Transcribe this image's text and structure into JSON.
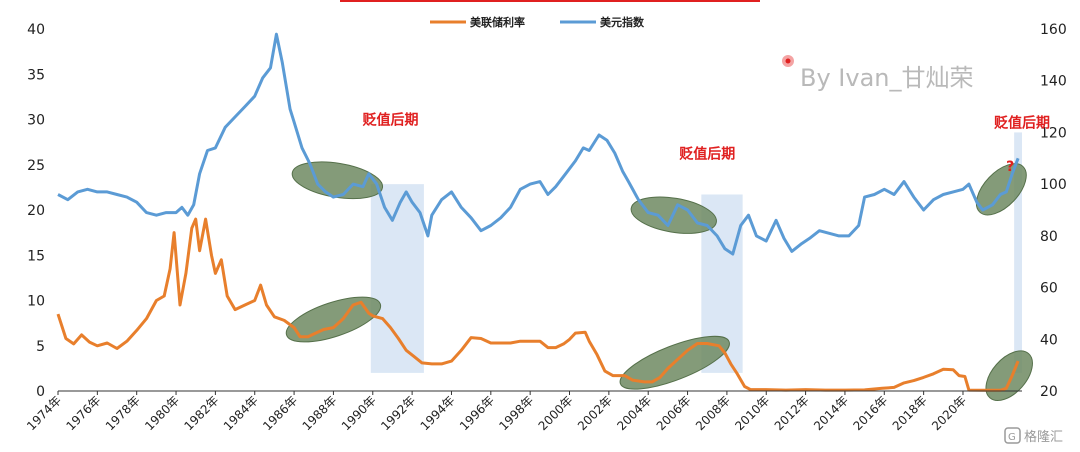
{
  "chart_data": {
    "type": "line",
    "title": "",
    "legend_position": "top",
    "grid": false,
    "x_ticks": [
      "1974年",
      "1976年",
      "1978年",
      "1980年",
      "1982年",
      "1984年",
      "1986年",
      "1988年",
      "1990年",
      "1992年",
      "1994年",
      "1996年",
      "1998年",
      "2000年",
      "2002年",
      "2004年",
      "2006年",
      "2008年",
      "2010年",
      "2012年",
      "2014年",
      "2016年",
      "2018年",
      "2020年"
    ],
    "x_range": [
      1974,
      2023
    ],
    "y_left": {
      "ticks": [
        0,
        5,
        10,
        15,
        20,
        25,
        30,
        35,
        40
      ],
      "ylim": [
        0,
        40
      ]
    },
    "y_right": {
      "ticks": [
        20,
        40,
        60,
        80,
        100,
        120,
        140,
        160
      ],
      "ylim": [
        20,
        160
      ]
    },
    "series": [
      {
        "name": "美联储利率",
        "axis": "left",
        "color": "#e87f2c",
        "points": [
          [
            1974.0,
            8.5
          ],
          [
            1974.4,
            5.8
          ],
          [
            1974.8,
            5.2
          ],
          [
            1975.2,
            6.2
          ],
          [
            1975.6,
            5.4
          ],
          [
            1976.0,
            5.0
          ],
          [
            1976.5,
            5.3
          ],
          [
            1977.0,
            4.7
          ],
          [
            1977.5,
            5.5
          ],
          [
            1978.0,
            6.7
          ],
          [
            1978.5,
            8.0
          ],
          [
            1979.0,
            10.0
          ],
          [
            1979.4,
            10.5
          ],
          [
            1979.7,
            13.5
          ],
          [
            1979.9,
            17.5
          ],
          [
            1980.2,
            9.5
          ],
          [
            1980.5,
            13.0
          ],
          [
            1980.8,
            18.0
          ],
          [
            1981.0,
            19.0
          ],
          [
            1981.2,
            15.5
          ],
          [
            1981.5,
            19.0
          ],
          [
            1981.8,
            15.0
          ],
          [
            1982.0,
            13.0
          ],
          [
            1982.3,
            14.5
          ],
          [
            1982.6,
            10.5
          ],
          [
            1983.0,
            9.0
          ],
          [
            1983.5,
            9.5
          ],
          [
            1984.0,
            10.0
          ],
          [
            1984.3,
            11.7
          ],
          [
            1984.6,
            9.5
          ],
          [
            1985.0,
            8.2
          ],
          [
            1985.5,
            7.8
          ],
          [
            1986.0,
            7.0
          ],
          [
            1986.3,
            6.0
          ],
          [
            1986.7,
            6.0
          ],
          [
            1987.0,
            6.3
          ],
          [
            1987.5,
            6.8
          ],
          [
            1988.0,
            7.0
          ],
          [
            1988.5,
            8.0
          ],
          [
            1989.0,
            9.5
          ],
          [
            1989.4,
            9.8
          ],
          [
            1989.8,
            8.6
          ],
          [
            1990.0,
            8.3
          ],
          [
            1990.5,
            8.0
          ],
          [
            1990.9,
            7.0
          ],
          [
            1991.3,
            5.8
          ],
          [
            1991.7,
            4.5
          ],
          [
            1992.1,
            3.8
          ],
          [
            1992.5,
            3.1
          ],
          [
            1993.0,
            3.0
          ],
          [
            1993.5,
            3.0
          ],
          [
            1994.0,
            3.3
          ],
          [
            1994.5,
            4.5
          ],
          [
            1995.0,
            5.9
          ],
          [
            1995.5,
            5.8
          ],
          [
            1996.0,
            5.3
          ],
          [
            1996.5,
            5.3
          ],
          [
            1997.0,
            5.3
          ],
          [
            1997.5,
            5.5
          ],
          [
            1998.0,
            5.5
          ],
          [
            1998.5,
            5.5
          ],
          [
            1998.9,
            4.8
          ],
          [
            1999.3,
            4.8
          ],
          [
            1999.7,
            5.2
          ],
          [
            2000.0,
            5.7
          ],
          [
            2000.3,
            6.4
          ],
          [
            2000.8,
            6.5
          ],
          [
            2001.0,
            5.5
          ],
          [
            2001.4,
            4.0
          ],
          [
            2001.8,
            2.2
          ],
          [
            2002.2,
            1.7
          ],
          [
            2002.8,
            1.7
          ],
          [
            2003.2,
            1.2
          ],
          [
            2003.8,
            1.0
          ],
          [
            2004.2,
            1.0
          ],
          [
            2004.6,
            1.5
          ],
          [
            2005.0,
            2.5
          ],
          [
            2005.5,
            3.5
          ],
          [
            2006.0,
            4.5
          ],
          [
            2006.5,
            5.25
          ],
          [
            2007.0,
            5.25
          ],
          [
            2007.6,
            5.0
          ],
          [
            2007.9,
            4.2
          ],
          [
            2008.2,
            3.0
          ],
          [
            2008.5,
            2.0
          ],
          [
            2008.9,
            0.5
          ],
          [
            2009.2,
            0.15
          ],
          [
            2010.0,
            0.15
          ],
          [
            2011.0,
            0.1
          ],
          [
            2012.0,
            0.15
          ],
          [
            2013.0,
            0.1
          ],
          [
            2014.0,
            0.1
          ],
          [
            2015.0,
            0.12
          ],
          [
            2015.9,
            0.3
          ],
          [
            2016.5,
            0.4
          ],
          [
            2017.0,
            0.9
          ],
          [
            2017.5,
            1.15
          ],
          [
            2018.0,
            1.5
          ],
          [
            2018.5,
            1.9
          ],
          [
            2019.0,
            2.4
          ],
          [
            2019.5,
            2.35
          ],
          [
            2019.8,
            1.7
          ],
          [
            2020.1,
            1.6
          ],
          [
            2020.3,
            0.1
          ],
          [
            2021.0,
            0.08
          ],
          [
            2021.9,
            0.08
          ],
          [
            2022.2,
            0.3
          ],
          [
            2022.5,
            1.7
          ],
          [
            2022.8,
            3.3
          ]
        ]
      },
      {
        "name": "美元指数",
        "axis": "right",
        "color": "#5b9bd5",
        "points": [
          [
            1974.0,
            96
          ],
          [
            1974.5,
            94
          ],
          [
            1975.0,
            97
          ],
          [
            1975.5,
            98
          ],
          [
            1976.0,
            97
          ],
          [
            1976.5,
            97
          ],
          [
            1977.0,
            96
          ],
          [
            1977.5,
            95
          ],
          [
            1978.0,
            93
          ],
          [
            1978.5,
            89
          ],
          [
            1979.0,
            88
          ],
          [
            1979.5,
            89
          ],
          [
            1980.0,
            89
          ],
          [
            1980.3,
            91
          ],
          [
            1980.6,
            88
          ],
          [
            1980.9,
            92
          ],
          [
            1981.2,
            104
          ],
          [
            1981.6,
            113
          ],
          [
            1982.0,
            114
          ],
          [
            1982.5,
            122
          ],
          [
            1983.0,
            126
          ],
          [
            1983.5,
            130
          ],
          [
            1984.0,
            134
          ],
          [
            1984.4,
            141
          ],
          [
            1984.8,
            145
          ],
          [
            1985.1,
            158
          ],
          [
            1985.4,
            147
          ],
          [
            1985.8,
            129
          ],
          [
            1986.0,
            124
          ],
          [
            1986.4,
            114
          ],
          [
            1986.8,
            108
          ],
          [
            1987.2,
            100
          ],
          [
            1987.6,
            97
          ],
          [
            1988.0,
            95
          ],
          [
            1988.5,
            96
          ],
          [
            1989.0,
            100
          ],
          [
            1989.5,
            99
          ],
          [
            1989.8,
            104
          ],
          [
            1990.2,
            100
          ],
          [
            1990.6,
            91
          ],
          [
            1991.0,
            86
          ],
          [
            1991.4,
            93
          ],
          [
            1991.7,
            97
          ],
          [
            1992.0,
            93
          ],
          [
            1992.4,
            89
          ],
          [
            1992.8,
            80
          ],
          [
            1993.0,
            88
          ],
          [
            1993.5,
            94
          ],
          [
            1994.0,
            97
          ],
          [
            1994.5,
            91
          ],
          [
            1995.0,
            87
          ],
          [
            1995.5,
            82
          ],
          [
            1996.0,
            84
          ],
          [
            1996.5,
            87
          ],
          [
            1997.0,
            91
          ],
          [
            1997.5,
            98
          ],
          [
            1998.0,
            100
          ],
          [
            1998.5,
            101
          ],
          [
            1998.9,
            96
          ],
          [
            1999.3,
            99
          ],
          [
            1999.8,
            104
          ],
          [
            2000.3,
            109
          ],
          [
            2000.7,
            114
          ],
          [
            2001.0,
            113
          ],
          [
            2001.5,
            119
          ],
          [
            2001.9,
            117
          ],
          [
            2002.3,
            112
          ],
          [
            2002.7,
            105
          ],
          [
            2003.0,
            101
          ],
          [
            2003.5,
            94
          ],
          [
            2004.0,
            89
          ],
          [
            2004.5,
            88
          ],
          [
            2005.0,
            84
          ],
          [
            2005.5,
            92
          ],
          [
            2006.0,
            90
          ],
          [
            2006.5,
            85
          ],
          [
            2007.0,
            84
          ],
          [
            2007.5,
            80
          ],
          [
            2007.9,
            75
          ],
          [
            2008.3,
            73
          ],
          [
            2008.7,
            84
          ],
          [
            2009.1,
            88
          ],
          [
            2009.5,
            80
          ],
          [
            2010.0,
            78
          ],
          [
            2010.5,
            86
          ],
          [
            2010.9,
            79
          ],
          [
            2011.3,
            74
          ],
          [
            2011.8,
            77
          ],
          [
            2012.2,
            79
          ],
          [
            2012.7,
            82
          ],
          [
            2013.2,
            81
          ],
          [
            2013.7,
            80
          ],
          [
            2014.2,
            80
          ],
          [
            2014.7,
            84
          ],
          [
            2015.0,
            95
          ],
          [
            2015.5,
            96
          ],
          [
            2016.0,
            98
          ],
          [
            2016.5,
            96
          ],
          [
            2017.0,
            101
          ],
          [
            2017.5,
            95
          ],
          [
            2018.0,
            90
          ],
          [
            2018.5,
            94
          ],
          [
            2019.0,
            96
          ],
          [
            2019.5,
            97
          ],
          [
            2020.0,
            98
          ],
          [
            2020.3,
            100
          ],
          [
            2020.7,
            93
          ],
          [
            2021.0,
            90
          ],
          [
            2021.5,
            92
          ],
          [
            2021.9,
            96
          ],
          [
            2022.2,
            97
          ],
          [
            2022.5,
            104
          ],
          [
            2022.8,
            110
          ]
        ]
      }
    ],
    "shaded_periods": [
      [
        1989.9,
        1992.6
      ],
      [
        2006.7,
        2008.8
      ],
      [
        2022.6,
        2023.0
      ]
    ],
    "highlight_ellipses": [
      {
        "series": "美联储利率",
        "x": [
          1986.2,
          1989.8
        ]
      },
      {
        "series": "美元指数",
        "x": [
          1986.6,
          1989.8
        ]
      },
      {
        "series": "美联储利率",
        "x": [
          2003.1,
          2007.6
        ]
      },
      {
        "series": "美元指数",
        "x": [
          2003.7,
          2006.9
        ]
      },
      {
        "series": "美元指数",
        "x": [
          2021.2,
          2022.7
        ]
      },
      {
        "series": "美联储利率",
        "x": [
          2021.7,
          2023.0
        ]
      }
    ],
    "annotations": [
      {
        "text": "贬值后期",
        "x": 1990.9,
        "y_right": 123
      },
      {
        "text": "贬值后期",
        "x": 2007.0,
        "y_right": 110
      },
      {
        "text": "贬值后期",
        "x": 2023.0,
        "y_right": 122
      },
      {
        "text": "?",
        "x": 2022.4,
        "y_right": 105
      }
    ]
  },
  "watermark": {
    "text": "By  Ivan_甘灿荣"
  },
  "logo": {
    "text": "格隆汇"
  }
}
